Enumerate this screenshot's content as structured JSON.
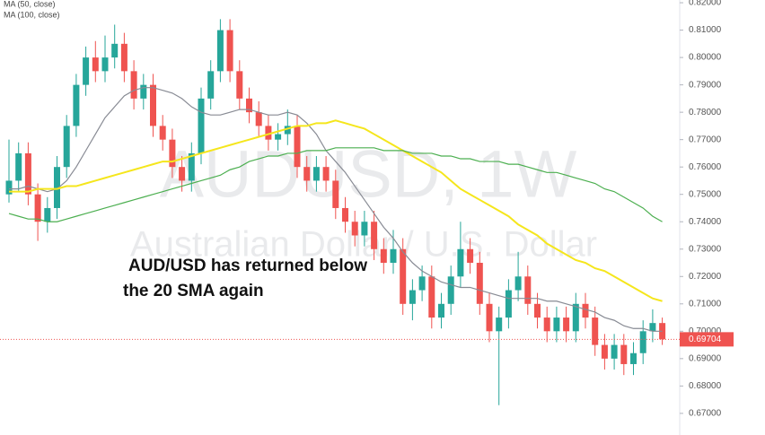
{
  "chart_data": {
    "type": "candlestick",
    "title": "AUDUSD, 1W",
    "subtitle": "Australian Dollar / U.S. Dollar",
    "annotations": [
      "AUD/USD has returned below",
      "the 20 SMA again"
    ],
    "up_color": "#26a69a",
    "down_color": "#ef5350",
    "open": [
      0.75,
      0.755,
      0.765,
      0.75,
      0.74,
      0.745,
      0.76,
      0.775,
      0.79,
      0.8,
      0.795,
      0.8,
      0.805,
      0.795,
      0.785,
      0.79,
      0.775,
      0.77,
      0.76,
      0.755,
      0.765,
      0.785,
      0.795,
      0.81,
      0.795,
      0.785,
      0.78,
      0.775,
      0.77,
      0.772,
      0.775,
      0.76,
      0.755,
      0.76,
      0.755,
      0.745,
      0.74,
      0.735,
      0.74,
      0.73,
      0.725,
      0.73,
      0.71,
      0.715,
      0.72,
      0.705,
      0.71,
      0.72,
      0.73,
      0.725,
      0.71,
      0.7,
      0.705,
      0.715,
      0.72,
      0.71,
      0.705,
      0.7,
      0.705,
      0.7,
      0.71,
      0.705,
      0.695,
      0.69,
      0.695,
      0.688,
      0.692,
      0.7,
      0.703
    ],
    "high": [
      0.77,
      0.769,
      0.769,
      0.754,
      0.749,
      0.764,
      0.779,
      0.794,
      0.804,
      0.806,
      0.808,
      0.812,
      0.809,
      0.799,
      0.794,
      0.794,
      0.779,
      0.774,
      0.764,
      0.769,
      0.789,
      0.799,
      0.814,
      0.814,
      0.799,
      0.789,
      0.784,
      0.779,
      0.776,
      0.781,
      0.779,
      0.764,
      0.764,
      0.764,
      0.759,
      0.749,
      0.744,
      0.744,
      0.744,
      0.734,
      0.737,
      0.734,
      0.719,
      0.724,
      0.724,
      0.714,
      0.724,
      0.74,
      0.734,
      0.729,
      0.714,
      0.709,
      0.719,
      0.729,
      0.724,
      0.714,
      0.709,
      0.709,
      0.709,
      0.714,
      0.714,
      0.709,
      0.699,
      0.699,
      0.699,
      0.696,
      0.704,
      0.708,
      0.705
    ],
    "low": [
      0.747,
      0.751,
      0.746,
      0.733,
      0.736,
      0.741,
      0.756,
      0.771,
      0.786,
      0.791,
      0.791,
      0.796,
      0.791,
      0.781,
      0.781,
      0.771,
      0.766,
      0.756,
      0.751,
      0.751,
      0.761,
      0.781,
      0.791,
      0.791,
      0.781,
      0.776,
      0.771,
      0.766,
      0.766,
      0.768,
      0.756,
      0.751,
      0.751,
      0.751,
      0.741,
      0.736,
      0.731,
      0.731,
      0.726,
      0.721,
      0.721,
      0.706,
      0.704,
      0.711,
      0.701,
      0.701,
      0.706,
      0.716,
      0.721,
      0.706,
      0.696,
      0.673,
      0.701,
      0.711,
      0.706,
      0.701,
      0.696,
      0.696,
      0.696,
      0.696,
      0.701,
      0.691,
      0.686,
      0.686,
      0.684,
      0.684,
      0.688,
      0.696,
      0.695
    ],
    "close": [
      0.755,
      0.765,
      0.75,
      0.74,
      0.745,
      0.76,
      0.775,
      0.79,
      0.8,
      0.795,
      0.8,
      0.805,
      0.795,
      0.785,
      0.79,
      0.775,
      0.77,
      0.76,
      0.755,
      0.765,
      0.785,
      0.795,
      0.81,
      0.795,
      0.785,
      0.78,
      0.775,
      0.77,
      0.772,
      0.775,
      0.76,
      0.755,
      0.76,
      0.755,
      0.745,
      0.74,
      0.735,
      0.74,
      0.73,
      0.725,
      0.73,
      0.71,
      0.715,
      0.72,
      0.705,
      0.71,
      0.72,
      0.73,
      0.725,
      0.71,
      0.7,
      0.705,
      0.715,
      0.72,
      0.71,
      0.705,
      0.7,
      0.705,
      0.7,
      0.71,
      0.705,
      0.695,
      0.69,
      0.695,
      0.688,
      0.692,
      0.7,
      0.703,
      0.69704
    ],
    "series": [
      {
        "color": "#888b94",
        "values": [
          0.752,
          0.752,
          0.753,
          0.752,
          0.751,
          0.752,
          0.755,
          0.76,
          0.766,
          0.772,
          0.778,
          0.782,
          0.786,
          0.788,
          0.789,
          0.789,
          0.788,
          0.787,
          0.785,
          0.782,
          0.78,
          0.779,
          0.779,
          0.78,
          0.781,
          0.781,
          0.78,
          0.779,
          0.779,
          0.78,
          0.779,
          0.776,
          0.772,
          0.766,
          0.762,
          0.758,
          0.753,
          0.748,
          0.743,
          0.738,
          0.734,
          0.729,
          0.725,
          0.722,
          0.72,
          0.718,
          0.717,
          0.716,
          0.716,
          0.715,
          0.714,
          0.713,
          0.712,
          0.712,
          0.712,
          0.712,
          0.711,
          0.711,
          0.71,
          0.709,
          0.708,
          0.707,
          0.705,
          0.704,
          0.702,
          0.701,
          0.701,
          0.7,
          0.7
        ]
      },
      {
        "name": "MA (50, close)",
        "color": "#f5e61c",
        "values": [
          0.751,
          0.751,
          0.751,
          0.752,
          0.752,
          0.752,
          0.753,
          0.753,
          0.754,
          0.755,
          0.756,
          0.757,
          0.758,
          0.759,
          0.76,
          0.761,
          0.762,
          0.762,
          0.763,
          0.764,
          0.765,
          0.766,
          0.767,
          0.768,
          0.769,
          0.77,
          0.771,
          0.772,
          0.773,
          0.774,
          0.775,
          0.775,
          0.776,
          0.776,
          0.777,
          0.776,
          0.775,
          0.774,
          0.772,
          0.77,
          0.768,
          0.766,
          0.764,
          0.762,
          0.76,
          0.758,
          0.755,
          0.752,
          0.75,
          0.748,
          0.746,
          0.744,
          0.742,
          0.739,
          0.737,
          0.735,
          0.732,
          0.73,
          0.728,
          0.726,
          0.725,
          0.723,
          0.722,
          0.72,
          0.718,
          0.716,
          0.714,
          0.712,
          0.711
        ]
      },
      {
        "name": "MA (100, close)",
        "color": "#4caf50",
        "values": [
          0.743,
          0.742,
          0.741,
          0.741,
          0.74,
          0.74,
          0.741,
          0.742,
          0.743,
          0.744,
          0.745,
          0.746,
          0.747,
          0.748,
          0.749,
          0.75,
          0.751,
          0.752,
          0.753,
          0.754,
          0.755,
          0.756,
          0.757,
          0.759,
          0.76,
          0.762,
          0.763,
          0.764,
          0.764,
          0.765,
          0.765,
          0.766,
          0.766,
          0.766,
          0.767,
          0.767,
          0.767,
          0.767,
          0.767,
          0.766,
          0.766,
          0.766,
          0.765,
          0.765,
          0.765,
          0.764,
          0.764,
          0.763,
          0.763,
          0.762,
          0.762,
          0.762,
          0.761,
          0.761,
          0.76,
          0.759,
          0.758,
          0.758,
          0.757,
          0.756,
          0.755,
          0.754,
          0.752,
          0.751,
          0.749,
          0.747,
          0.745,
          0.742,
          0.74
        ]
      }
    ],
    "last_price": 0.69704,
    "ylim": [
      0.6621,
      0.821
    ],
    "yticks": [
      {
        "value": 0.67,
        "label": "0.67000"
      },
      {
        "value": 0.68,
        "label": "0.68000"
      },
      {
        "value": 0.69,
        "label": "0.69000"
      },
      {
        "value": 0.7,
        "label": "0.70000"
      },
      {
        "value": 0.71,
        "label": "0.71000"
      },
      {
        "value": 0.72,
        "label": "0.72000"
      },
      {
        "value": 0.73,
        "label": "0.73000"
      },
      {
        "value": 0.74,
        "label": "0.74000"
      },
      {
        "value": 0.75,
        "label": "0.75000"
      },
      {
        "value": 0.76,
        "label": "0.76000"
      },
      {
        "value": 0.77,
        "label": "0.77000"
      },
      {
        "value": 0.78,
        "label": "0.78000"
      },
      {
        "value": 0.79,
        "label": "0.79000"
      },
      {
        "value": 0.8,
        "label": "0.80000"
      },
      {
        "value": 0.81,
        "label": "0.81000"
      },
      {
        "value": 0.82,
        "label": "0.82000"
      }
    ],
    "grid": false
  }
}
